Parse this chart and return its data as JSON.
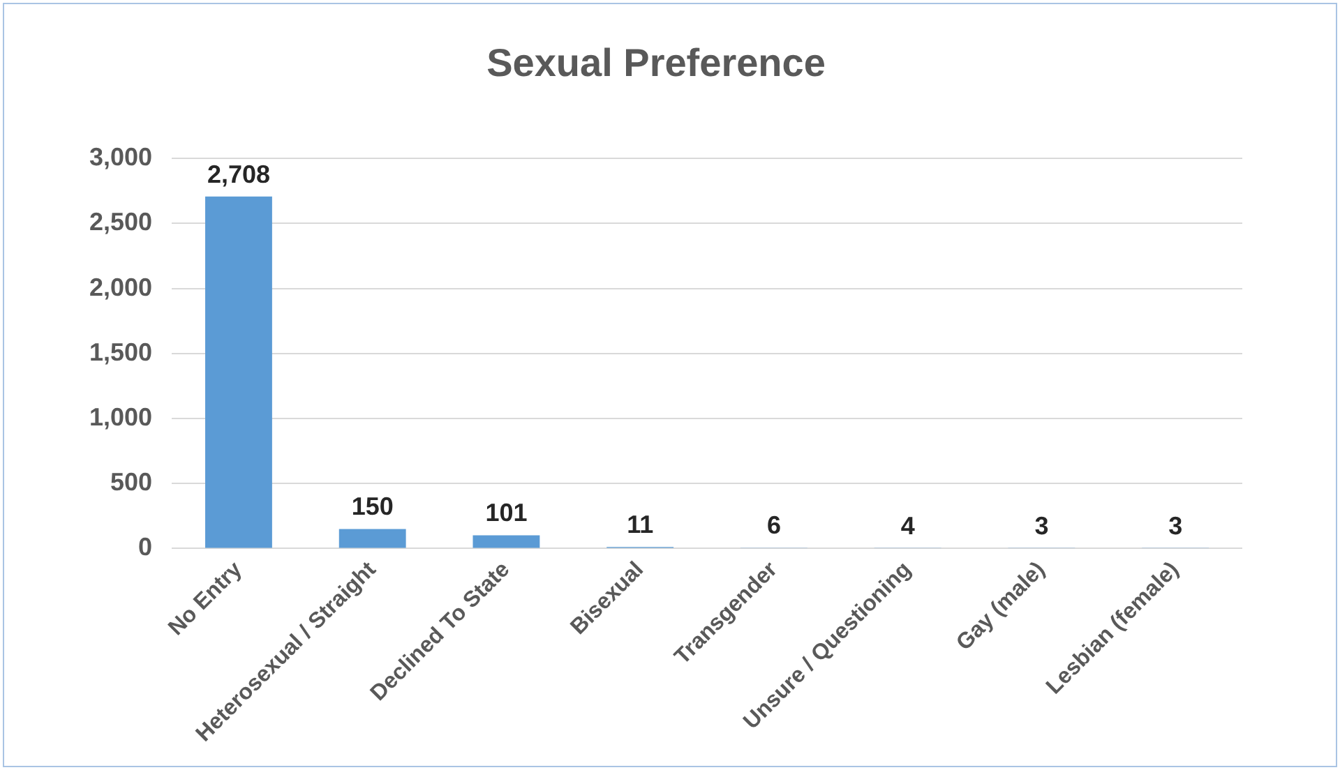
{
  "chart_data": {
    "type": "bar",
    "title": "Sexual Preference",
    "categories": [
      "No Entry",
      "Heterosexual / Straight",
      "Declined To State",
      "Bisexual",
      "Transgender",
      "Unsure / Questioning",
      "Gay (male)",
      "Lesbian (female)"
    ],
    "values": [
      2708,
      150,
      101,
      11,
      6,
      4,
      3,
      3
    ],
    "color": "#5b9bd5",
    "value_labels": [
      "2,708",
      "150",
      "101",
      "11",
      "6",
      "4",
      "3",
      "3"
    ],
    "ylim": [
      0,
      3000
    ],
    "yticks": [
      0,
      500,
      {
        "value": 1000,
        "label": "1,000"
      },
      {
        "value": 1500,
        "label": "1,500"
      },
      {
        "value": 2000,
        "label": "2,000"
      },
      {
        "value": 2500,
        "label": "2,500"
      },
      {
        "value": 3000,
        "label": "3,000"
      }
    ],
    "grid": "y",
    "legend": false
  }
}
